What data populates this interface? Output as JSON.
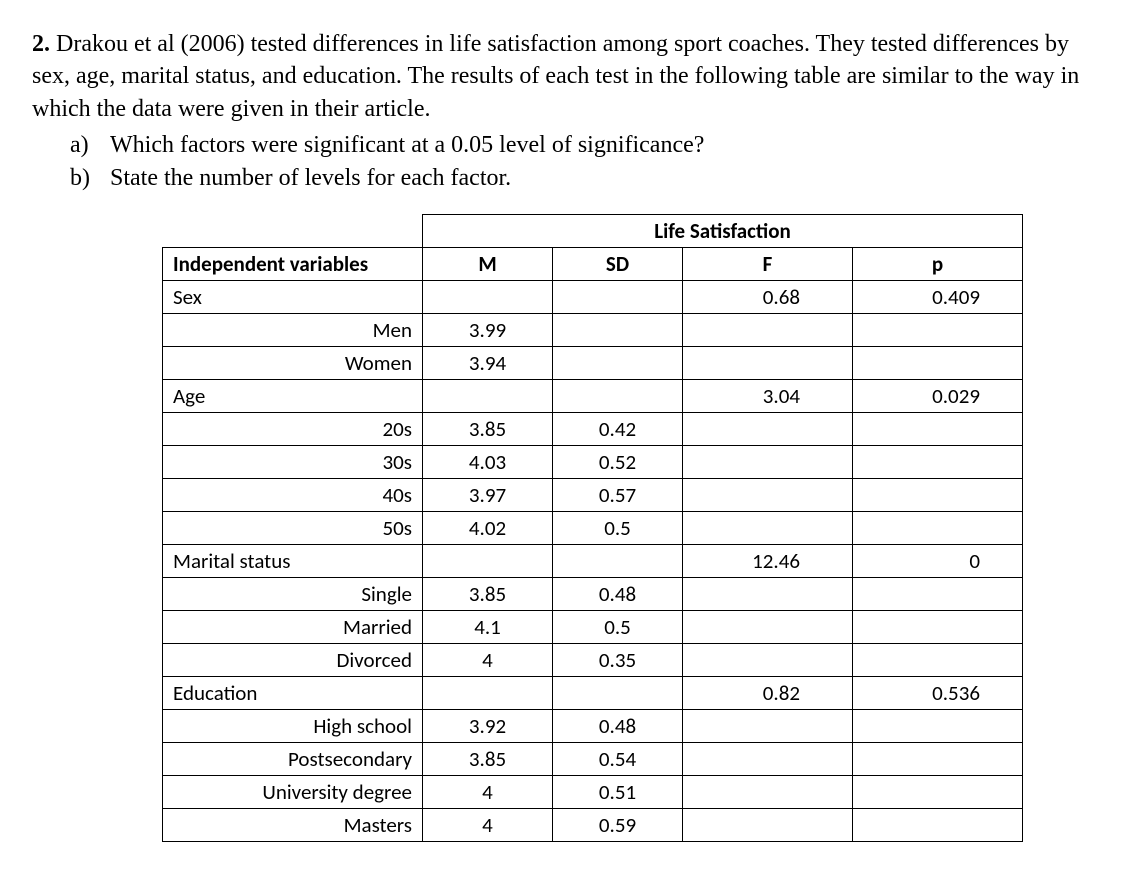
{
  "question": {
    "number": "2.",
    "text": "Drakou et al (2006) tested differences in life satisfaction among sport coaches. They tested differences by sex, age, marital status, and education. The results of each test in the following table are similar to the way in which the data were given in their article.",
    "parts": [
      {
        "marker": "a)",
        "text": "Which factors were significant at a 0.05 level of significance?"
      },
      {
        "marker": "b)",
        "text": "State the number of levels for each factor."
      }
    ]
  },
  "table": {
    "super_header": "Life Satisfaction",
    "headers": {
      "iv": "Independent variables",
      "m": "M",
      "sd": "SD",
      "f": "F",
      "p": "p"
    },
    "rows": [
      {
        "label": "Sex",
        "indent": false,
        "m": "",
        "sd": "",
        "f": "0.68",
        "p": "0.409"
      },
      {
        "label": "Men",
        "indent": true,
        "m": "3.99",
        "sd": "",
        "f": "",
        "p": ""
      },
      {
        "label": "Women",
        "indent": true,
        "m": "3.94",
        "sd": "",
        "f": "",
        "p": ""
      },
      {
        "label": "Age",
        "indent": false,
        "m": "",
        "sd": "",
        "f": "3.04",
        "p": "0.029"
      },
      {
        "label": "20s",
        "indent": true,
        "m": "3.85",
        "sd": "0.42",
        "f": "",
        "p": ""
      },
      {
        "label": "30s",
        "indent": true,
        "m": "4.03",
        "sd": "0.52",
        "f": "",
        "p": ""
      },
      {
        "label": "40s",
        "indent": true,
        "m": "3.97",
        "sd": "0.57",
        "f": "",
        "p": ""
      },
      {
        "label": "50s",
        "indent": true,
        "m": "4.02",
        "sd": "0.5",
        "f": "",
        "p": ""
      },
      {
        "label": "Marital status",
        "indent": false,
        "m": "",
        "sd": "",
        "f": "12.46",
        "p": "0"
      },
      {
        "label": "Single",
        "indent": true,
        "m": "3.85",
        "sd": "0.48",
        "f": "",
        "p": ""
      },
      {
        "label": "Married",
        "indent": true,
        "m": "4.1",
        "sd": "0.5",
        "f": "",
        "p": ""
      },
      {
        "label": "Divorced",
        "indent": true,
        "m": "4",
        "sd": "0.35",
        "f": "",
        "p": ""
      },
      {
        "label": "Education",
        "indent": false,
        "m": "",
        "sd": "",
        "f": "0.82",
        "p": "0.536"
      },
      {
        "label": "High school",
        "indent": true,
        "m": "3.92",
        "sd": "0.48",
        "f": "",
        "p": ""
      },
      {
        "label": "Postsecondary",
        "indent": true,
        "m": "3.85",
        "sd": "0.54",
        "f": "",
        "p": ""
      },
      {
        "label": "University degree",
        "indent": true,
        "m": "4",
        "sd": "0.51",
        "f": "",
        "p": ""
      },
      {
        "label": "Masters",
        "indent": true,
        "m": "4",
        "sd": "0.59",
        "f": "",
        "p": ""
      }
    ]
  }
}
